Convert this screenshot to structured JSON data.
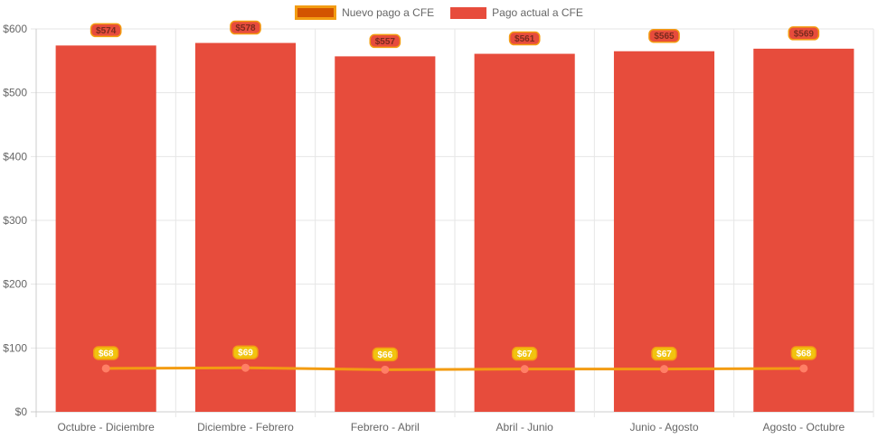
{
  "chart_data": {
    "type": "bar",
    "categories": [
      "Octubre - Diciembre",
      "Diciembre - Febrero",
      "Febrero - Abril",
      "Abril - Junio",
      "Junio - Agosto",
      "Agosto - Octubre"
    ],
    "series": [
      {
        "name": "Nuevo pago a CFE",
        "type": "line",
        "values": [
          68,
          69,
          66,
          67,
          67,
          68
        ],
        "labels": [
          "$68",
          "$69",
          "$66",
          "$67",
          "$67",
          "$68"
        ],
        "color": "#f39c12",
        "point_color": "#ff7f66",
        "legend_fill": "#d35400"
      },
      {
        "name": "Pago actual a CFE",
        "type": "bar",
        "values": [
          574,
          578,
          557,
          561,
          565,
          569
        ],
        "labels": [
          "$574",
          "$578",
          "$557",
          "$561",
          "$565",
          "$569"
        ],
        "color": "#e74c3c"
      }
    ],
    "yticks": [
      "$0",
      "$100",
      "$200",
      "$300",
      "$400",
      "$500",
      "$600"
    ],
    "ylim": [
      0,
      600
    ],
    "grid": true,
    "legend_position": "top-center",
    "label_badge_colors": {
      "line_fill": "#f1c40f",
      "line_text": "#ffffff",
      "bar_fill": "#e74c3c",
      "bar_text": "#7a2a1e",
      "border": "#f39c12"
    }
  }
}
